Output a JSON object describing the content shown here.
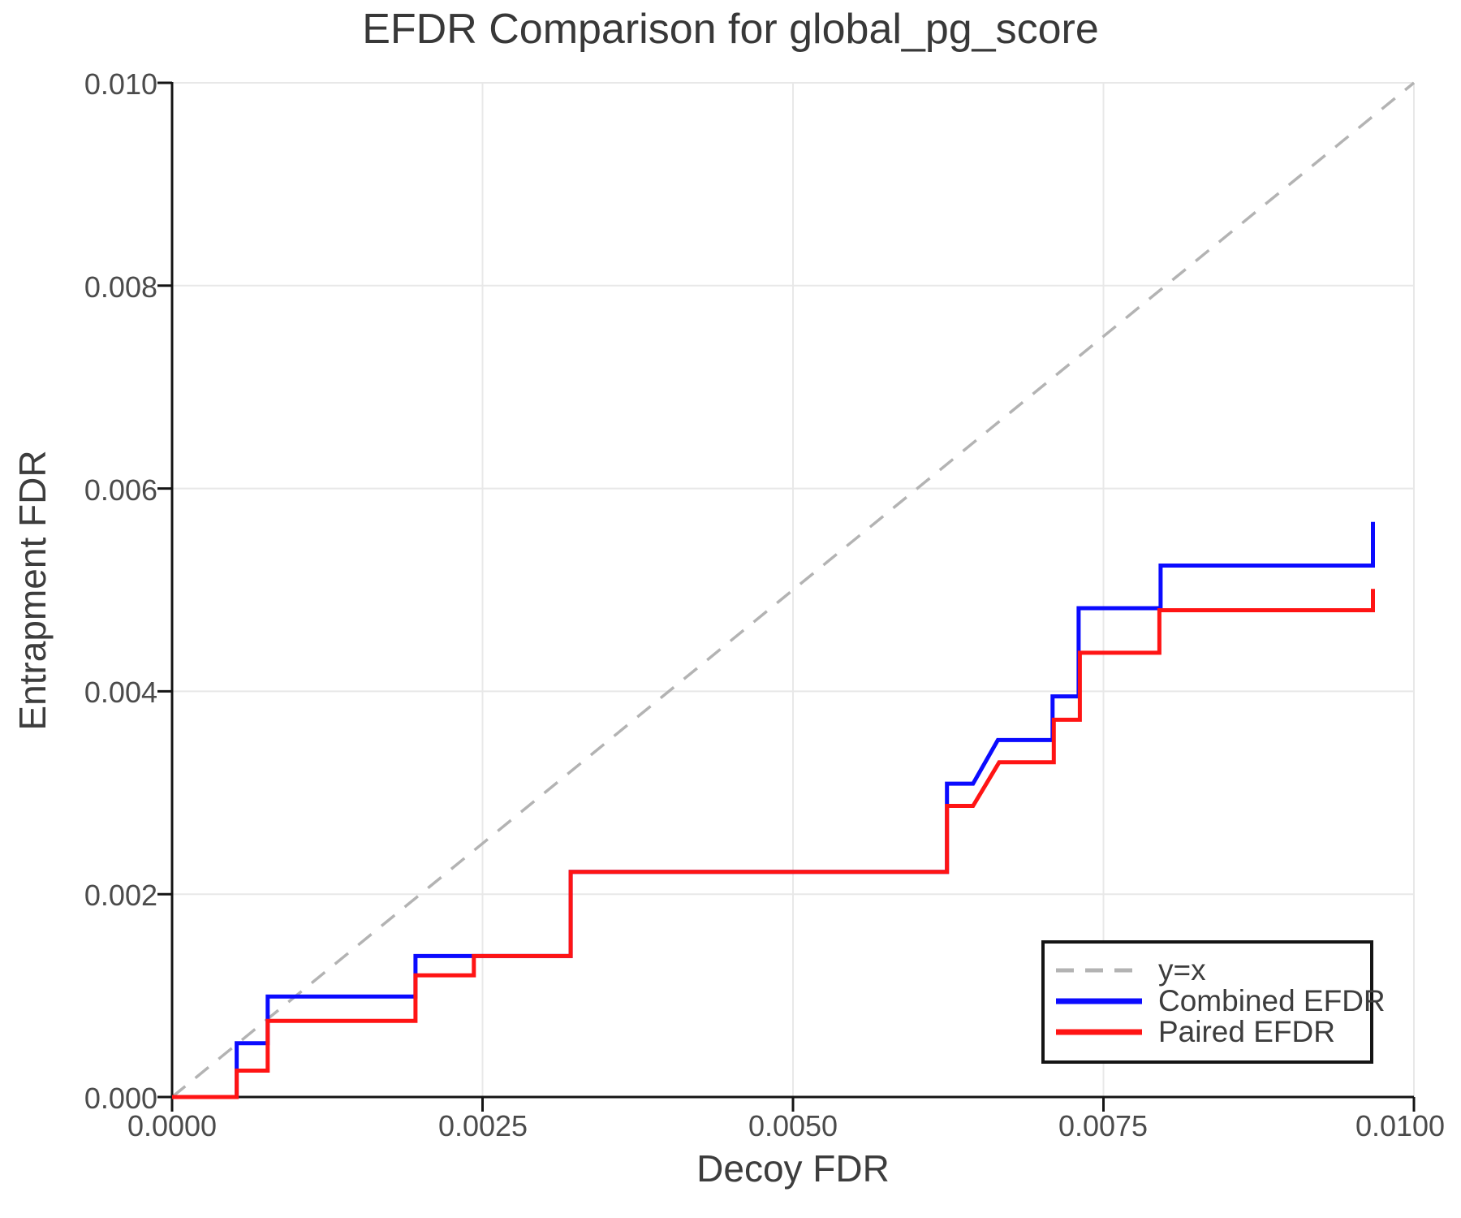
{
  "chart_data": {
    "type": "line",
    "subtype": "step",
    "title": "EFDR Comparison for global_pg_score",
    "xlabel": "Decoy FDR",
    "ylabel": "Entrapment FDR",
    "xlim": [
      0.0,
      0.01
    ],
    "ylim": [
      0.0,
      0.01
    ],
    "grid": true,
    "x_ticks": [
      0.0,
      0.0025,
      0.005,
      0.0075,
      0.01
    ],
    "x_tick_labels": [
      "0.0000",
      "0.0025",
      "0.0050",
      "0.0075",
      "0.0100"
    ],
    "y_ticks": [
      0.0,
      0.002,
      0.004,
      0.006,
      0.008,
      0.01
    ],
    "y_tick_labels": [
      "0.000",
      "0.002",
      "0.004",
      "0.006",
      "0.008",
      "0.010"
    ],
    "colors": {
      "grid": "#e8e8e8",
      "axis": "#141414",
      "reference": "#b3b3b3",
      "combined": "#0b0bff",
      "paired": "#ff1414"
    },
    "reference_line": {
      "label": "y=x",
      "style": "dashed",
      "from": [
        0.0,
        0.0
      ],
      "to": [
        0.01,
        0.01
      ]
    },
    "legend": {
      "position": "bottom-right",
      "entries": [
        {
          "label": "y=x",
          "style": "dashed",
          "color": "#b3b3b3"
        },
        {
          "label": "Combined EFDR",
          "style": "solid",
          "color": "#0b0bff"
        },
        {
          "label": "Paired EFDR",
          "style": "solid",
          "color": "#ff1414"
        }
      ]
    },
    "series": [
      {
        "name": "Combined EFDR",
        "color": "#0b0bff",
        "points": [
          [
            0.0,
            0.0
          ],
          [
            0.00052,
            0.0
          ],
          [
            0.00052,
            0.00053
          ],
          [
            0.00077,
            0.00053
          ],
          [
            0.00077,
            0.00099
          ],
          [
            0.00196,
            0.00099
          ],
          [
            0.00196,
            0.00139
          ],
          [
            0.00321,
            0.00139
          ],
          [
            0.00321,
            0.00222
          ],
          [
            0.00624,
            0.00222
          ],
          [
            0.00624,
            0.00309
          ],
          [
            0.00645,
            0.00309
          ],
          [
            0.00665,
            0.00352
          ],
          [
            0.00709,
            0.00352
          ],
          [
            0.00709,
            0.00395
          ],
          [
            0.0073,
            0.00395
          ],
          [
            0.0073,
            0.00482
          ],
          [
            0.00796,
            0.00482
          ],
          [
            0.00796,
            0.00524
          ],
          [
            0.00967,
            0.00524
          ],
          [
            0.00967,
            0.00567
          ]
        ]
      },
      {
        "name": "Paired EFDR",
        "color": "#ff1414",
        "points": [
          [
            0.0,
            0.0
          ],
          [
            0.00052,
            0.0
          ],
          [
            0.00052,
            0.00026
          ],
          [
            0.00077,
            0.00026
          ],
          [
            0.00077,
            0.00075
          ],
          [
            0.00196,
            0.00075
          ],
          [
            0.00196,
            0.0012
          ],
          [
            0.00243,
            0.0012
          ],
          [
            0.00243,
            0.00139
          ],
          [
            0.00321,
            0.00139
          ],
          [
            0.00321,
            0.00222
          ],
          [
            0.00624,
            0.00222
          ],
          [
            0.00624,
            0.00287
          ],
          [
            0.00645,
            0.00287
          ],
          [
            0.00666,
            0.0033
          ],
          [
            0.0071,
            0.0033
          ],
          [
            0.0071,
            0.00372
          ],
          [
            0.00731,
            0.00372
          ],
          [
            0.00731,
            0.00438
          ],
          [
            0.00795,
            0.00438
          ],
          [
            0.00795,
            0.0048
          ],
          [
            0.00967,
            0.0048
          ],
          [
            0.00967,
            0.00501
          ]
        ]
      }
    ]
  }
}
